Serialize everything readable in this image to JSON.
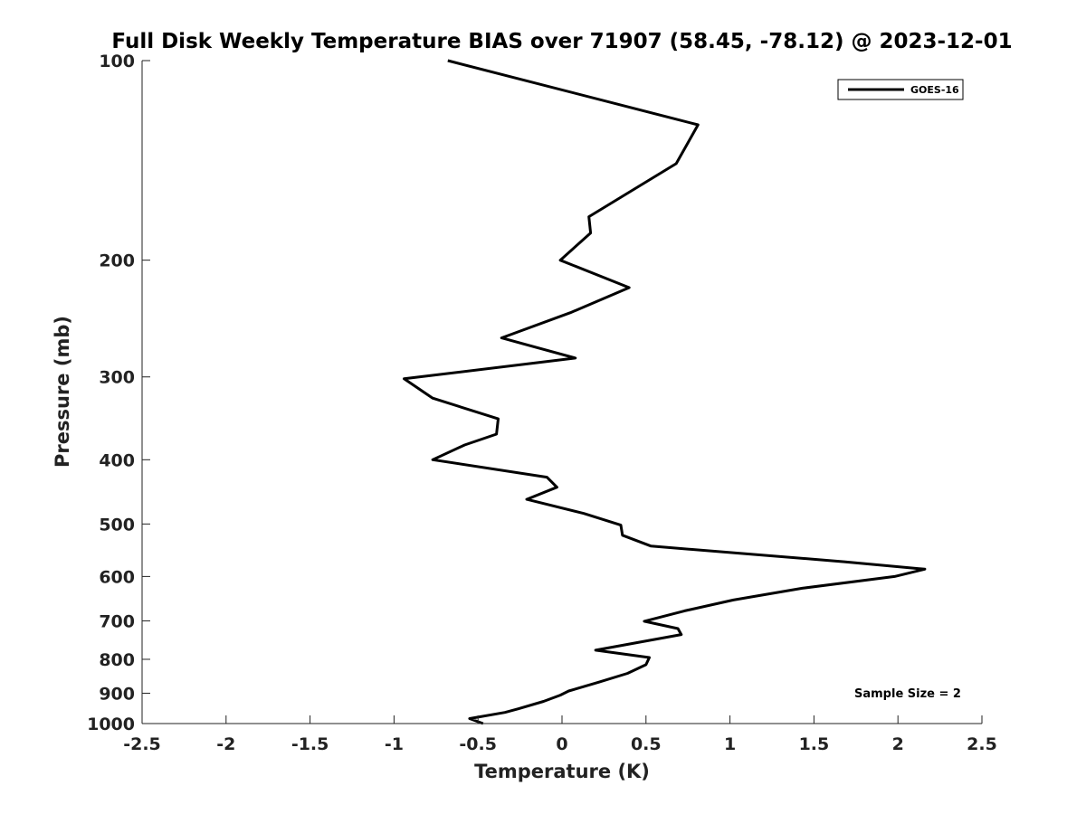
{
  "chart_data": {
    "type": "line",
    "title": "Full Disk Weekly Temperature BIAS over 71907 (58.45, -78.12) @ 2023-12-01",
    "xlabel": "Temperature (K)",
    "ylabel": "Pressure (mb)",
    "xlim": [
      -2.5,
      2.5
    ],
    "ylim": [
      1000,
      100
    ],
    "yscale": "log",
    "x_ticks": [
      -2.5,
      -2,
      -1.5,
      -1,
      -0.5,
      0,
      0.5,
      1,
      1.5,
      2,
      2.5
    ],
    "x_tick_labels": [
      "-2.5",
      "-2",
      "-1.5",
      "-1",
      "-0.5",
      "0",
      "0.5",
      "1",
      "1.5",
      "2",
      "2.5"
    ],
    "y_ticks": [
      100,
      200,
      300,
      400,
      500,
      600,
      700,
      800,
      900,
      1000
    ],
    "y_tick_labels": [
      "100",
      "200",
      "300",
      "400",
      "500",
      "600",
      "700",
      "800",
      "900",
      "1000"
    ],
    "grid": false,
    "legend_position": "top-right",
    "annotation": "Sample Size = 2",
    "series": [
      {
        "name": "GOES-16",
        "color": "#000000",
        "points": [
          [
            -0.68,
            100
          ],
          [
            0.81,
            125
          ],
          [
            0.68,
            143
          ],
          [
            0.16,
            172
          ],
          [
            0.17,
            182
          ],
          [
            -0.01,
            200
          ],
          [
            0.4,
            220
          ],
          [
            0.05,
            240
          ],
          [
            -0.36,
            262
          ],
          [
            0.08,
            281
          ],
          [
            -0.94,
            302
          ],
          [
            -0.77,
            323
          ],
          [
            -0.38,
            347
          ],
          [
            -0.39,
            366
          ],
          [
            -0.58,
            380
          ],
          [
            -0.77,
            400
          ],
          [
            -0.09,
            425
          ],
          [
            -0.03,
            440
          ],
          [
            -0.21,
            459
          ],
          [
            0.13,
            482
          ],
          [
            0.35,
            502
          ],
          [
            0.36,
            520
          ],
          [
            0.53,
            540
          ],
          [
            1.68,
            570
          ],
          [
            2.16,
            585
          ],
          [
            1.98,
            600
          ],
          [
            1.43,
            625
          ],
          [
            1.02,
            651
          ],
          [
            0.73,
            676
          ],
          [
            0.49,
            701
          ],
          [
            0.69,
            719
          ],
          [
            0.71,
            734
          ],
          [
            0.2,
            775
          ],
          [
            0.52,
            795
          ],
          [
            0.5,
            815
          ],
          [
            0.39,
            840
          ],
          [
            0.22,
            866
          ],
          [
            0.04,
            893
          ],
          [
            -0.01,
            906
          ],
          [
            -0.11,
            926
          ],
          [
            -0.26,
            950
          ],
          [
            -0.34,
            962
          ],
          [
            -0.55,
            983
          ],
          [
            -0.47,
            1000
          ]
        ]
      }
    ]
  }
}
